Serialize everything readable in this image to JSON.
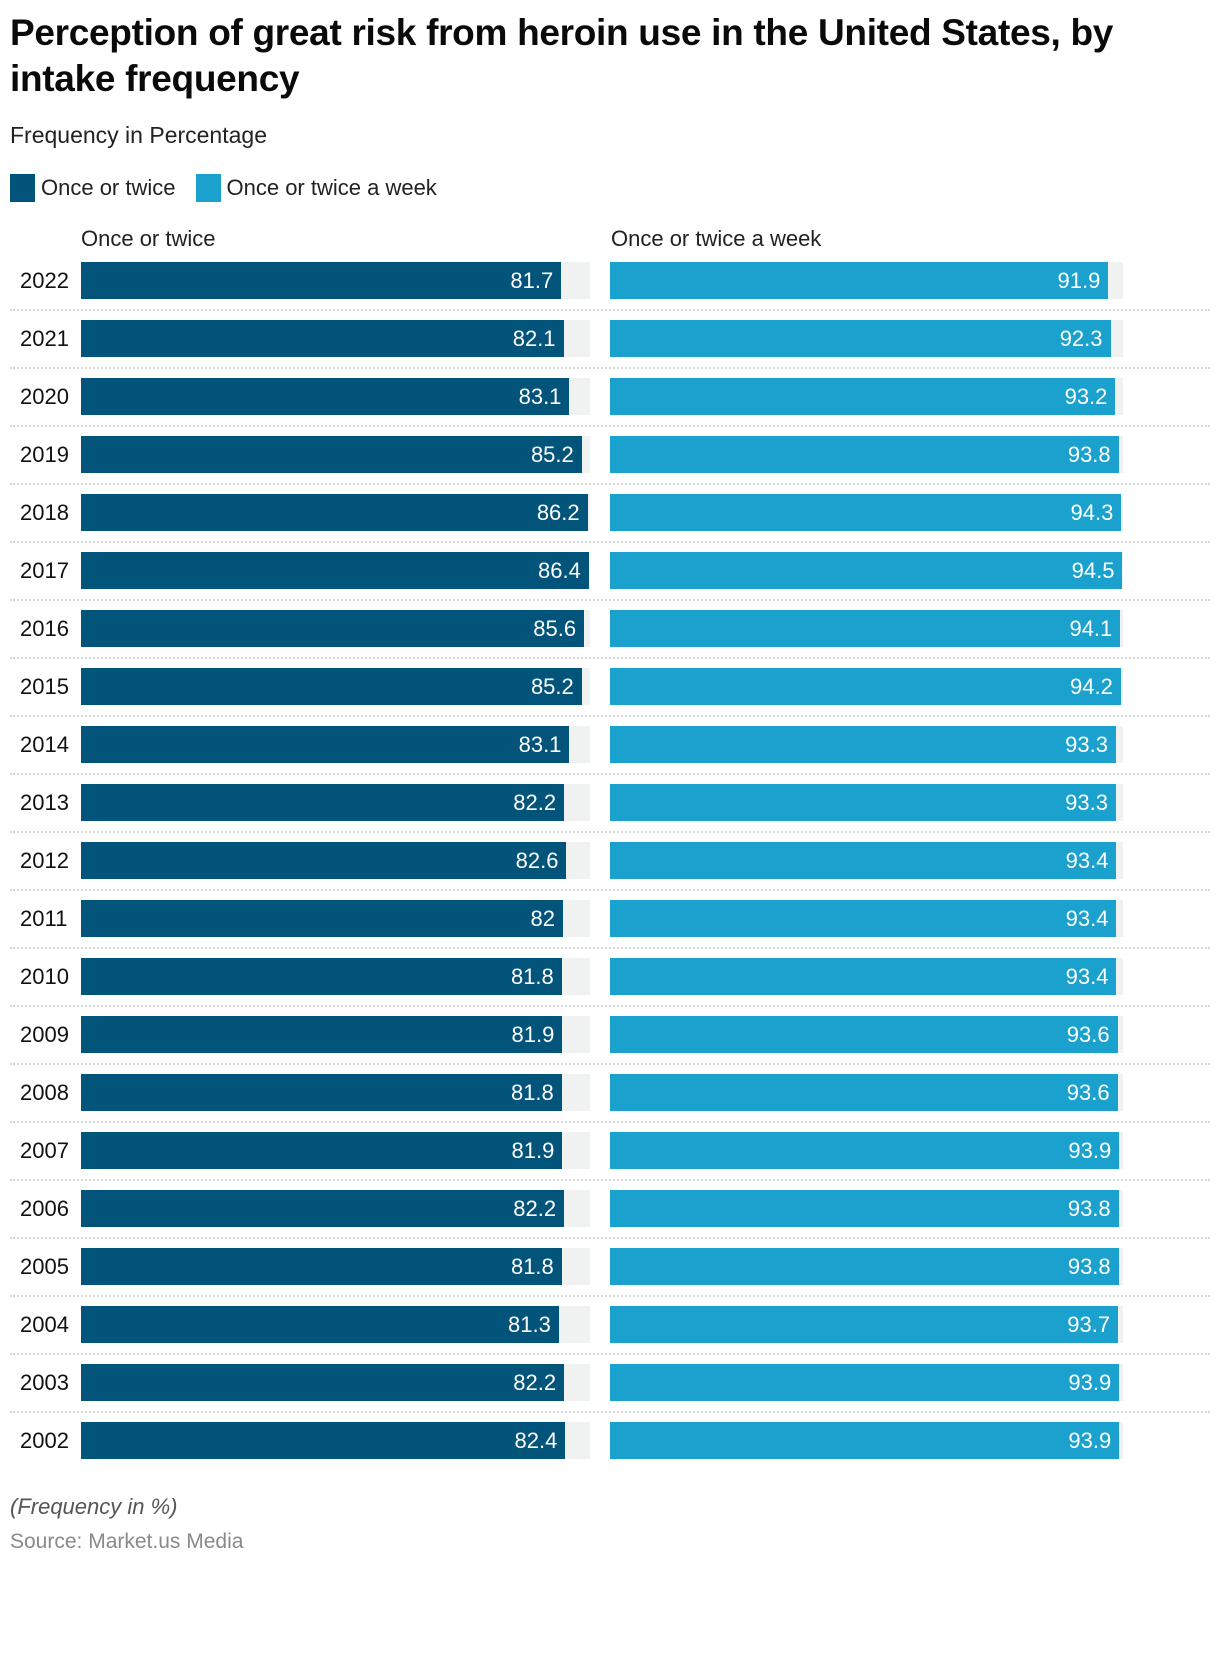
{
  "title": "Perception of great risk from heroin use in the United States, by intake frequency",
  "subtitle": "Frequency in Percentage",
  "legend": [
    {
      "label": "Once or twice",
      "color": "#02547b"
    },
    {
      "label": "Once or twice a week",
      "color": "#1ba1cd"
    }
  ],
  "panels": [
    {
      "label": "Once or twice"
    },
    {
      "label": "Once or twice a week"
    }
  ],
  "note": "(Frequency in %)",
  "source": "Source: Market.us Media",
  "chart_data": {
    "type": "bar",
    "orientation": "horizontal",
    "layout": "small-multiples",
    "title": "Perception of great risk from heroin use in the United States, by intake frequency",
    "subtitle": "Frequency in Percentage",
    "xlabel": "",
    "ylabel": "",
    "unit": "%",
    "categories": [
      "2022",
      "2021",
      "2020",
      "2019",
      "2018",
      "2017",
      "2016",
      "2015",
      "2014",
      "2013",
      "2012",
      "2011",
      "2010",
      "2009",
      "2008",
      "2007",
      "2006",
      "2005",
      "2004",
      "2003",
      "2002"
    ],
    "series": [
      {
        "name": "Once or twice",
        "color": "#02547b",
        "values": [
          81.7,
          82.1,
          83.1,
          85.2,
          86.2,
          86.4,
          85.6,
          85.2,
          83.1,
          82.2,
          82.6,
          82,
          81.8,
          81.9,
          81.8,
          81.9,
          82.2,
          81.8,
          81.3,
          82.2,
          82.4
        ],
        "labels": [
          "81.7",
          "82.1",
          "83.1",
          "85.2",
          "86.2",
          "86.4",
          "85.6",
          "85.2",
          "83.1",
          "82.2",
          "82.6",
          "82",
          "81.8",
          "81.9",
          "81.8",
          "81.9",
          "82.2",
          "81.8",
          "81.3",
          "82.2",
          "82.4"
        ]
      },
      {
        "name": "Once or twice a week",
        "color": "#1ba1cd",
        "values": [
          91.9,
          92.3,
          93.2,
          93.8,
          94.3,
          94.5,
          94.1,
          94.2,
          93.3,
          93.3,
          93.4,
          93.4,
          93.4,
          93.6,
          93.6,
          93.9,
          93.8,
          93.8,
          93.7,
          93.9,
          93.9
        ],
        "labels": [
          "91.9",
          "92.3",
          "93.2",
          "93.8",
          "94.3",
          "94.5",
          "94.1",
          "94.2",
          "93.3",
          "93.3",
          "93.4",
          "93.4",
          "93.4",
          "93.6",
          "93.6",
          "93.9",
          "93.8",
          "93.8",
          "93.7",
          "93.9",
          "93.9"
        ]
      }
    ],
    "legend_position": "top-left",
    "grid": false,
    "data_labels": "inside-end",
    "footnote": "(Frequency in %)",
    "source": "Source: Market.us Media"
  }
}
